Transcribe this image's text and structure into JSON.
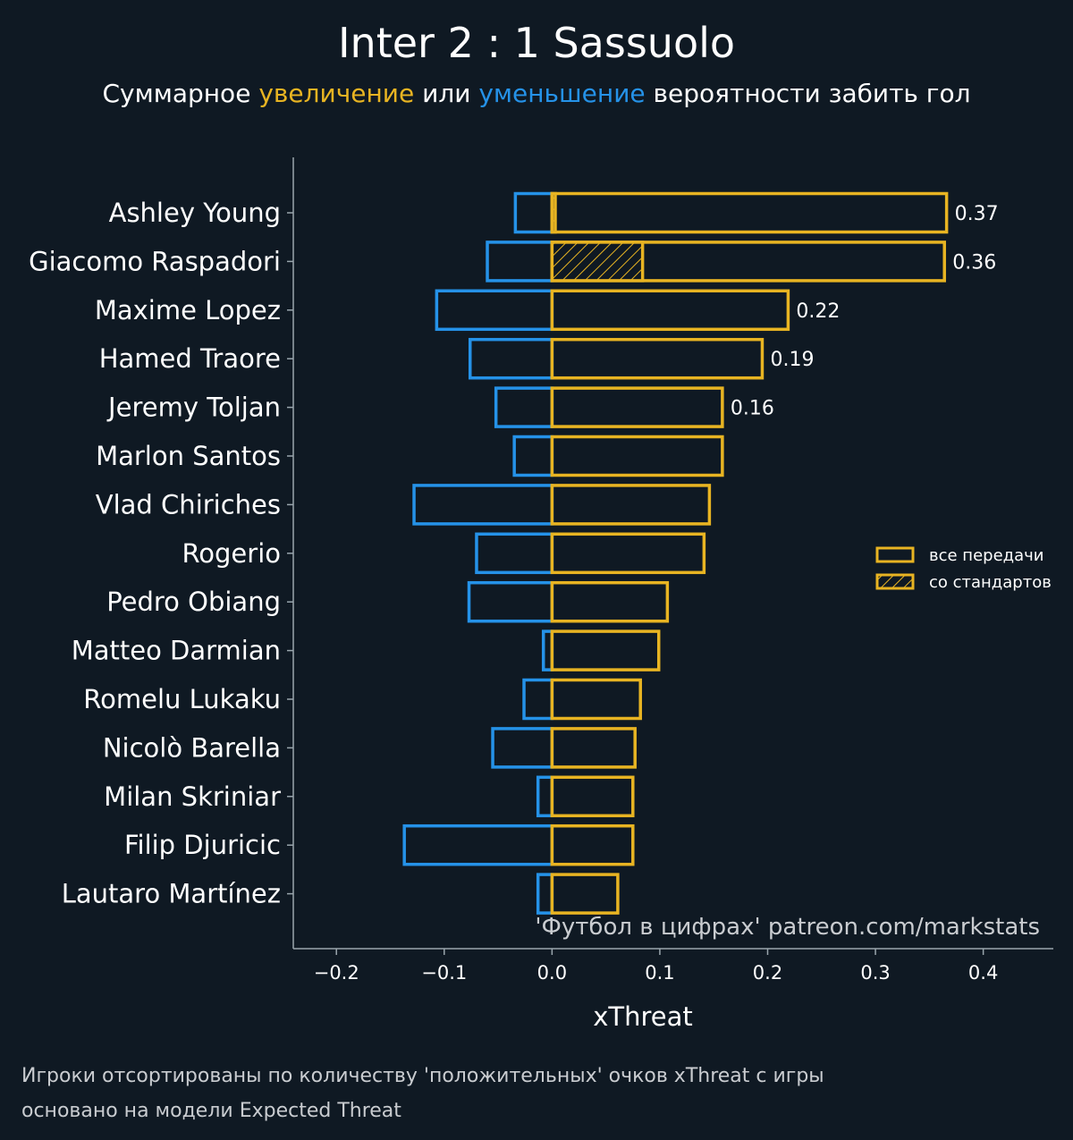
{
  "colors": {
    "background": "#0f1923",
    "positive": "#e8b422",
    "negative": "#2592e8",
    "axis": "#9aa6ad",
    "text": "#ffffff",
    "muted": "#c9ccd0"
  },
  "chart_data": {
    "type": "bar",
    "orientation": "horizontal",
    "title": "Inter 2 : 1 Sassuolo",
    "subtitle": {
      "prefix": "Суммарное ",
      "increase": "увеличение",
      "middle": " или ",
      "decrease": "уменьшение",
      "suffix": " вероятности забить гол"
    },
    "xlabel": "xThreat",
    "xlim": [
      -0.24,
      0.465
    ],
    "xticks": [
      -0.2,
      -0.1,
      0.0,
      0.1,
      0.2,
      0.3,
      0.4
    ],
    "xtick_labels": [
      "−0.2",
      "−0.1",
      "0.0",
      "0.1",
      "0.2",
      "0.3",
      "0.4"
    ],
    "categories": [
      "Ashley Young",
      "Giacomo Raspadori",
      "Maxime Lopez",
      "Hamed Traore",
      "Jeremy Toljan",
      "Marlon Santos",
      "Vlad Chiriches",
      "Rogerio",
      "Pedro Obiang",
      "Matteo Darmian",
      "Romelu Lukaku",
      "Nicolò Barella",
      "Milan Skriniar",
      "Filip Djuricic",
      "Lautaro Martínez"
    ],
    "series": [
      {
        "name": "все передачи (положительные)",
        "values": [
          0.366,
          0.364,
          0.219,
          0.195,
          0.158,
          0.158,
          0.146,
          0.141,
          0.107,
          0.099,
          0.082,
          0.077,
          0.075,
          0.075,
          0.061
        ]
      },
      {
        "name": "все передачи (отрицательные)",
        "values": [
          -0.034,
          -0.06,
          -0.107,
          -0.076,
          -0.052,
          -0.035,
          -0.128,
          -0.07,
          -0.077,
          -0.008,
          -0.026,
          -0.055,
          -0.013,
          -0.137,
          -0.013
        ]
      },
      {
        "name": "со стандартов",
        "values": [
          0.003,
          0.084,
          0,
          0,
          0,
          0,
          0,
          0,
          0,
          0,
          0,
          0,
          0,
          0,
          0
        ]
      }
    ],
    "value_labels": [
      "0.37",
      "0.36",
      "0.22",
      "0.19",
      "0.16"
    ],
    "legend": {
      "position": "right",
      "items": [
        {
          "label": "все передачи",
          "style": "outline"
        },
        {
          "label": "со стандартов",
          "style": "hatched"
        }
      ]
    },
    "credit": "'Футбол в цифрах' patreon.com/markstats"
  },
  "footnote": {
    "line1": "Игроки отсортированы по количеству 'положительных' очков xThreat с игры",
    "line2": "основано на модели Expected Threat"
  }
}
